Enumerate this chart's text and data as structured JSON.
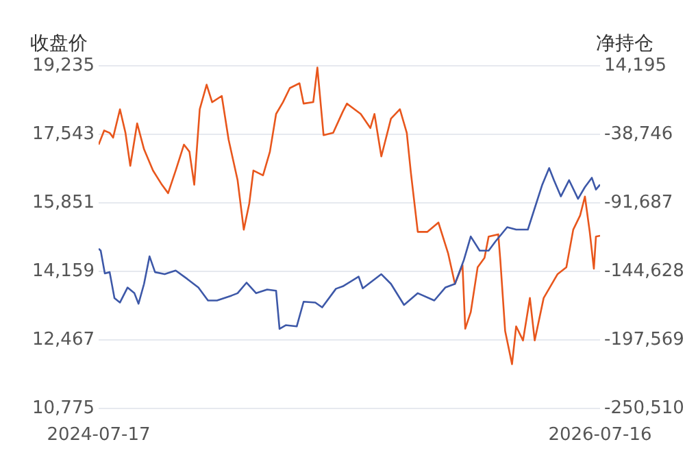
{
  "chart_data": {
    "type": "line",
    "ylabel": "收盘价",
    "y2label": "净持仓",
    "xlim": [
      "2024-07-17",
      "2026-07-16"
    ],
    "xticks": [
      "2024-07-17",
      "2026-07-16"
    ],
    "ylim": [
      10775,
      19235
    ],
    "yticks": [
      {
        "value": 10775,
        "label": "10,775"
      },
      {
        "value": 12467,
        "label": "12,467"
      },
      {
        "value": 14159,
        "label": "14,159"
      },
      {
        "value": 15851,
        "label": "15,851"
      },
      {
        "value": 17543,
        "label": "17,543"
      },
      {
        "value": 19235,
        "label": "19,235"
      }
    ],
    "y2lim": [
      -250510,
      14195
    ],
    "y2ticks": [
      {
        "value": -250510,
        "label": "-250,510"
      },
      {
        "value": -197569,
        "label": "-197,569"
      },
      {
        "value": -144628,
        "label": "-144,628"
      },
      {
        "value": -91687,
        "label": "-91,687"
      },
      {
        "value": -38746,
        "label": "-38,746"
      },
      {
        "value": 14195,
        "label": "14,195"
      }
    ],
    "grid": "y",
    "legend": false,
    "marker": "none",
    "series": [
      {
        "color": "#3d58a8",
        "x": [
          "2024-07-17",
          "2024-07-20",
          "2024-07-26",
          "2024-08-02",
          "2024-08-09",
          "2024-08-17",
          "2024-08-28",
          "2024-09-07",
          "2024-09-13",
          "2024-09-21",
          "2024-09-29",
          "2024-10-07",
          "2024-10-21",
          "2024-11-06",
          "2024-11-23",
          "2024-12-09",
          "2024-12-23",
          "2025-01-05",
          "2025-01-26",
          "2025-02-04",
          "2025-02-17",
          "2025-03-03",
          "2025-03-19",
          "2025-04-01",
          "2025-04-06",
          "2025-04-15",
          "2025-05-01",
          "2025-05-11",
          "2025-05-28",
          "2025-06-07",
          "2025-06-27",
          "2025-07-07",
          "2025-07-30",
          "2025-08-05",
          "2025-09-01",
          "2025-09-15",
          "2025-10-04",
          "2025-10-24",
          "2025-11-17",
          "2025-12-03",
          "2025-12-17",
          "2025-12-30",
          "2026-01-09",
          "2026-01-22",
          "2026-02-04",
          "2026-02-14",
          "2026-03-03",
          "2026-03-16",
          "2026-04-02",
          "2026-04-12",
          "2026-04-23",
          "2026-05-03",
          "2026-05-10",
          "2026-05-20",
          "2026-06-01",
          "2026-06-14",
          "2026-06-24",
          "2026-07-04",
          "2026-07-10",
          "2026-07-16"
        ],
        "values": [
          14720,
          14670,
          14110,
          14140,
          13500,
          13390,
          13760,
          13620,
          13360,
          13850,
          14530,
          14140,
          14090,
          14180,
          13970,
          13760,
          13440,
          13440,
          13560,
          13620,
          13880,
          13620,
          13710,
          13680,
          12740,
          12830,
          12800,
          13410,
          13390,
          13270,
          13730,
          13790,
          14030,
          13740,
          14090,
          13850,
          13330,
          13620,
          13440,
          13760,
          13850,
          14440,
          15020,
          14670,
          14670,
          14900,
          15250,
          15190,
          15190,
          15720,
          16300,
          16710,
          16410,
          16010,
          16410,
          15950,
          16240,
          16470,
          16180,
          16300
        ]
      },
      {
        "color": "#e8561c",
        "axis": "y2",
        "x": [
          "2024-07-17",
          "2024-07-25",
          "2024-08-02",
          "2024-08-07",
          "2024-08-17",
          "2024-08-25",
          "2024-09-01",
          "2024-09-11",
          "2024-09-21",
          "2024-10-04",
          "2024-10-17",
          "2024-10-26",
          "2024-11-06",
          "2024-11-18",
          "2024-11-26",
          "2024-12-03",
          "2024-12-11",
          "2024-12-21",
          "2024-12-29",
          "2025-01-12",
          "2025-01-22",
          "2025-02-04",
          "2025-02-13",
          "2025-02-21",
          "2025-02-27",
          "2025-03-13",
          "2025-03-23",
          "2025-04-01",
          "2025-04-11",
          "2025-04-21",
          "2025-05-05",
          "2025-05-11",
          "2025-05-25",
          "2025-05-31",
          "2025-06-09",
          "2025-06-23",
          "2025-07-07",
          "2025-07-13",
          "2025-08-02",
          "2025-08-16",
          "2025-08-22",
          "2025-09-01",
          "2025-09-15",
          "2025-09-28",
          "2025-10-08",
          "2025-10-14",
          "2025-10-24",
          "2025-11-07",
          "2025-11-23",
          "2025-12-07",
          "2025-12-17",
          "2025-12-28",
          "2026-01-01",
          "2026-01-09",
          "2026-01-19",
          "2026-01-29",
          "2026-02-04",
          "2026-02-18",
          "2026-02-21",
          "2026-02-28",
          "2026-03-10",
          "2026-03-16",
          "2026-03-26",
          "2026-04-05",
          "2026-04-12",
          "2026-04-25",
          "2026-05-05",
          "2026-05-15",
          "2026-05-28",
          "2026-06-07",
          "2026-06-17",
          "2026-06-24",
          "2026-07-01",
          "2026-07-07",
          "2026-07-10",
          "2026-07-16"
        ],
        "values": [
          -46700,
          -35800,
          -37600,
          -41300,
          -19400,
          -37600,
          -63100,
          -30300,
          -50300,
          -66700,
          -77700,
          -84200,
          -66700,
          -46700,
          -52200,
          -77700,
          -19400,
          -400,
          -13900,
          -9100,
          -43000,
          -74100,
          -112400,
          -92200,
          -66700,
          -70400,
          -52200,
          -23000,
          -13900,
          -3000,
          700,
          -15000,
          -13900,
          12800,
          -39400,
          -37600,
          -21200,
          -15000,
          -23000,
          -33900,
          -23000,
          -55800,
          -26600,
          -19400,
          -37600,
          -68600,
          -114100,
          -114100,
          -106900,
          -130500,
          -154300,
          -139700,
          -188900,
          -176100,
          -141500,
          -134200,
          -117800,
          -116000,
          -136000,
          -190700,
          -216300,
          -187100,
          -198000,
          -165200,
          -198000,
          -165200,
          -156100,
          -146900,
          -141500,
          -112400,
          -101400,
          -86800,
          -114100,
          -142600,
          -117800,
          -117100
        ]
      }
    ]
  }
}
